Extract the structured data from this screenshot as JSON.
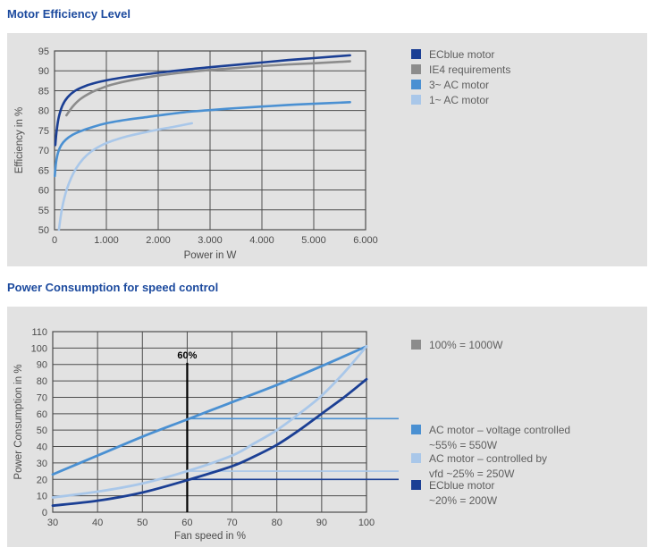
{
  "colors": {
    "panel_bg": "#e2e2e2",
    "grid": "#4d4d4d",
    "title": "#1c4a9e",
    "tick_text": "#4c4c4c",
    "legend_text": "#5f5f5f",
    "marker": "#000000",
    "dark_blue": "#1b3f94",
    "gray": "#8c8c8c",
    "mid_blue": "#4a90d2",
    "light_blue": "#a9c7e9"
  },
  "chart_data": [
    {
      "type": "line",
      "title": "Motor Efficiency Level",
      "xlabel": "Power in W",
      "ylabel": "Efficiency in %",
      "xlim": [
        0,
        6000
      ],
      "ylim": [
        50,
        95
      ],
      "xticks": [
        0,
        1000,
        2000,
        3000,
        4000,
        5000,
        6000
      ],
      "xtick_labels": [
        "0",
        "1.000",
        "2.000",
        "3.000",
        "4.000",
        "5.000",
        "6.000"
      ],
      "yticks": [
        50,
        55,
        60,
        65,
        70,
        75,
        80,
        85,
        90,
        95
      ],
      "grid": true,
      "legend_position": "right",
      "series": [
        {
          "name": "ECblue motor",
          "color": "#1b3f94",
          "points": [
            [
              15,
              71.3
            ],
            [
              40,
              74.8
            ],
            [
              80,
              78.2
            ],
            [
              150,
              81.2
            ],
            [
              250,
              83.3
            ],
            [
              400,
              85.0
            ],
            [
              600,
              86.2
            ],
            [
              800,
              87.0
            ],
            [
              1000,
              87.6
            ],
            [
              1400,
              88.5
            ],
            [
              1800,
              89.2
            ],
            [
              2200,
              89.8
            ],
            [
              2600,
              90.4
            ],
            [
              3000,
              90.9
            ],
            [
              3500,
              91.5
            ],
            [
              4000,
              92.1
            ],
            [
              4500,
              92.7
            ],
            [
              5000,
              93.2
            ],
            [
              5400,
              93.6
            ],
            [
              5700,
              93.9
            ]
          ]
        },
        {
          "name": "IE4 requirements",
          "color": "#8c8c8c",
          "points": [
            [
              230,
              78.8
            ],
            [
              350,
              81.0
            ],
            [
              500,
              82.9
            ],
            [
              700,
              84.5
            ],
            [
              900,
              85.6
            ],
            [
              1100,
              86.5
            ],
            [
              1500,
              87.7
            ],
            [
              2000,
              88.8
            ],
            [
              2500,
              89.6
            ],
            [
              3000,
              90.2
            ],
            [
              3500,
              90.7
            ],
            [
              4000,
              91.2
            ],
            [
              4500,
              91.6
            ],
            [
              5000,
              91.9
            ],
            [
              5700,
              92.4
            ]
          ]
        },
        {
          "name": "3~ AC motor",
          "color": "#4a90d2",
          "points": [
            [
              5,
              63.5
            ],
            [
              30,
              67.0
            ],
            [
              70,
              69.5
            ],
            [
              130,
              71.3
            ],
            [
              220,
              72.7
            ],
            [
              350,
              73.9
            ],
            [
              500,
              74.8
            ],
            [
              700,
              75.7
            ],
            [
              1000,
              76.8
            ],
            [
              1400,
              77.7
            ],
            [
              1800,
              78.4
            ],
            [
              2200,
              79.1
            ],
            [
              2600,
              79.7
            ],
            [
              3000,
              80.1
            ],
            [
              3500,
              80.6
            ],
            [
              4000,
              81.0
            ],
            [
              4500,
              81.4
            ],
            [
              5000,
              81.7
            ],
            [
              5700,
              82.1
            ]
          ]
        },
        {
          "name": "1~ AC motor",
          "color": "#a9c7e9",
          "points": [
            [
              85,
              50.0
            ],
            [
              110,
              52.5
            ],
            [
              140,
              55.0
            ],
            [
              180,
              57.5
            ],
            [
              240,
              60.3
            ],
            [
              320,
              63.0
            ],
            [
              420,
              65.5
            ],
            [
              550,
              67.8
            ],
            [
              700,
              69.6
            ],
            [
              900,
              71.2
            ],
            [
              1100,
              72.3
            ],
            [
              1400,
              73.5
            ],
            [
              1700,
              74.4
            ],
            [
              2000,
              75.2
            ],
            [
              2300,
              75.9
            ],
            [
              2650,
              76.8
            ]
          ]
        }
      ]
    },
    {
      "type": "line",
      "title": "Power Consumption for speed control",
      "xlabel": "Fan speed in %",
      "ylabel": "Power Consumption in %",
      "xlim": [
        30,
        100
      ],
      "ylim": [
        0,
        110
      ],
      "xticks": [
        30,
        40,
        50,
        60,
        70,
        80,
        90,
        100
      ],
      "yticks": [
        0,
        10,
        20,
        30,
        40,
        50,
        60,
        70,
        80,
        90,
        100,
        110
      ],
      "grid": true,
      "legend_position": "right",
      "marker": {
        "x": 60,
        "label": "60%",
        "y_top": 91
      },
      "ref_lines": [
        {
          "y": 57,
          "color": "#4a90d2"
        },
        {
          "y": 25,
          "color": "#a9c7e9"
        },
        {
          "y": 20,
          "color": "#1b3f94"
        }
      ],
      "series": [
        {
          "name": "AC motor – voltage controlled",
          "color": "#4a90d2",
          "points": [
            [
              30,
              23
            ],
            [
              40,
              34.5
            ],
            [
              50,
              46
            ],
            [
              60,
              56.5
            ],
            [
              70,
              67
            ],
            [
              80,
              77.5
            ],
            [
              90,
              89
            ],
            [
              100,
              101
            ]
          ]
        },
        {
          "name": "AC motor – controlled by vfd",
          "color": "#a9c7e9",
          "points": [
            [
              30,
              9
            ],
            [
              40,
              12.5
            ],
            [
              50,
              17.5
            ],
            [
              60,
              25
            ],
            [
              70,
              34.5
            ],
            [
              75,
              42
            ],
            [
              80,
              50
            ],
            [
              85,
              60
            ],
            [
              90,
              71
            ],
            [
              95,
              85
            ],
            [
              100,
              101
            ]
          ]
        },
        {
          "name": "ECblue motor",
          "color": "#1b3f94",
          "points": [
            [
              30,
              4
            ],
            [
              40,
              7
            ],
            [
              50,
              12
            ],
            [
              60,
              19.5
            ],
            [
              70,
              28
            ],
            [
              75,
              34
            ],
            [
              80,
              41
            ],
            [
              85,
              50
            ],
            [
              90,
              60
            ],
            [
              95,
              70
            ],
            [
              100,
              81
            ]
          ]
        }
      ],
      "legend": [
        {
          "color": "#8c8c8c",
          "line1": "100% = 1000W",
          "line2": ""
        },
        {
          "color": "#4a90d2",
          "line1": "AC motor – voltage controlled",
          "line2": "~55% = 550W"
        },
        {
          "color": "#a9c7e9",
          "line1": "AC motor – controlled by",
          "line2": "vfd ~25% = 250W"
        },
        {
          "color": "#1b3f94",
          "line1": "ECblue motor",
          "line2": "~20% = 200W"
        }
      ]
    }
  ]
}
